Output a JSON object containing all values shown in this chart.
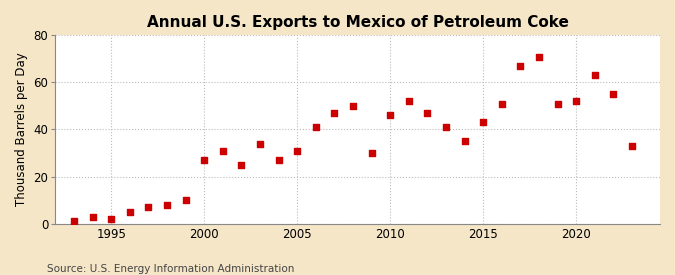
{
  "title": "Annual U.S. Exports to Mexico of Petroleum Coke",
  "ylabel": "Thousand Barrels per Day",
  "source": "Source: U.S. Energy Information Administration",
  "years": [
    1993,
    1994,
    1995,
    1996,
    1997,
    1998,
    1999,
    2000,
    2001,
    2002,
    2003,
    2004,
    2005,
    2006,
    2007,
    2008,
    2009,
    2010,
    2011,
    2012,
    2013,
    2014,
    2015,
    2016,
    2017,
    2018,
    2019,
    2020,
    2021,
    2022,
    2023
  ],
  "values": [
    1,
    3,
    2,
    5,
    7,
    8,
    10,
    27,
    31,
    25,
    34,
    27,
    31,
    41,
    47,
    50,
    30,
    46,
    52,
    47,
    41,
    35,
    43,
    51,
    67,
    71,
    51,
    52,
    63,
    55,
    33
  ],
  "marker_color": "#cc0000",
  "fig_bg_color": "#f5e6c8",
  "plot_bg_color": "#ffffff",
  "grid_color": "#bbbbbb",
  "xlim": [
    1992,
    2024.5
  ],
  "ylim": [
    0,
    80
  ],
  "yticks": [
    0,
    20,
    40,
    60,
    80
  ],
  "xticks": [
    1995,
    2000,
    2005,
    2010,
    2015,
    2020
  ],
  "title_fontsize": 11,
  "label_fontsize": 8.5,
  "source_fontsize": 7.5,
  "marker_size": 18
}
